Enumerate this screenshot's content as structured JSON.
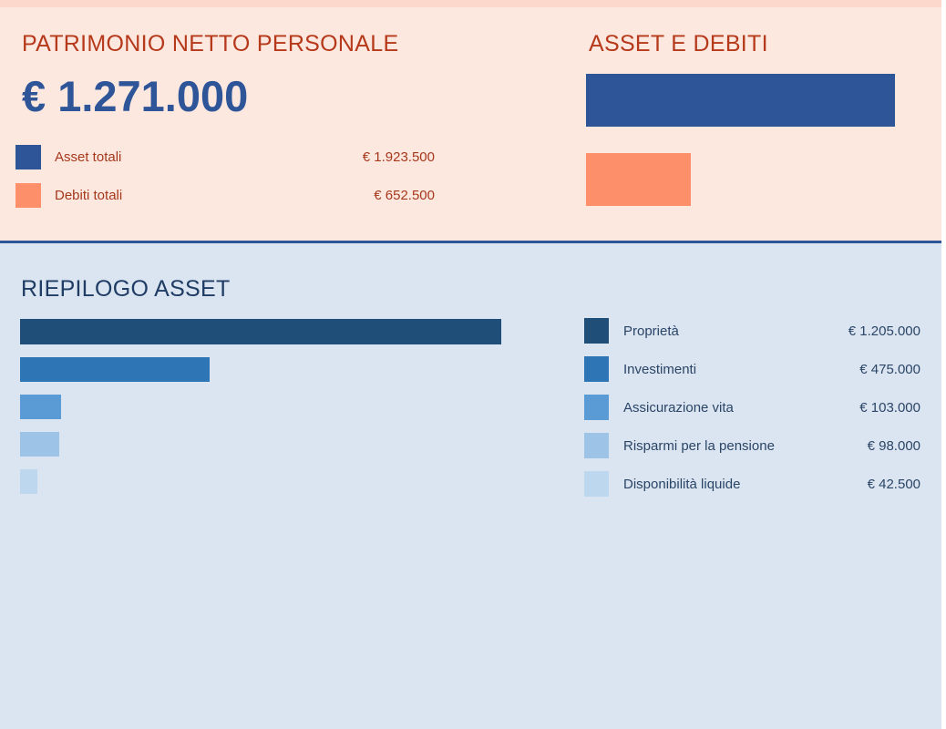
{
  "header": {
    "net_worth_title": "PATRIMONIO NETTO PERSONALE",
    "net_worth_value": "€ 1.271.000",
    "assets_debts_title": "ASSET E DEBITI"
  },
  "totals": [
    {
      "label": "Asset totali",
      "value": "€ 1.923.500",
      "amount": 1923500,
      "color": "#2e5597"
    },
    {
      "label": "Debiti totali",
      "value": "€ 652.500",
      "amount": 652500,
      "color": "#fe8f6b"
    }
  ],
  "summary": {
    "title": "RIEPILOGO ASSET",
    "items": [
      {
        "label": "Proprietà",
        "value": "€ 1.205.000",
        "amount": 1205000,
        "color": "#1f4e79"
      },
      {
        "label": "Investimenti",
        "value": "€ 475.000",
        "amount": 475000,
        "color": "#2e75b6"
      },
      {
        "label": "Assicurazione vita",
        "value": "€ 103.000",
        "amount": 103000,
        "color": "#5b9bd5"
      },
      {
        "label": "Risparmi per la pensione",
        "value": "€ 98.000",
        "amount": 98000,
        "color": "#9dc3e6"
      },
      {
        "label": "Disponibilità liquide",
        "value": "€ 42.500",
        "amount": 42500,
        "color": "#bdd7ee"
      }
    ]
  }
}
